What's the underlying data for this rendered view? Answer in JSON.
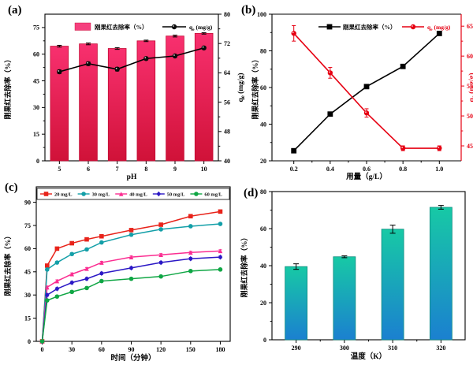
{
  "figure": {
    "background": "#ffffff"
  },
  "chart_data": [
    {
      "panel": "(a)",
      "type": "bar",
      "subtype": "bar-line-dual-axis",
      "categories": [
        5,
        6,
        7,
        8,
        9,
        10
      ],
      "xlabel": "pH",
      "ylabel_left": "刚果红去除率（%）",
      "ylabel_right": "qe (mg/g)",
      "ylim_left": [
        0,
        82.5
      ],
      "yticks_left": [
        0,
        15,
        30,
        45,
        60,
        75
      ],
      "yminor_left": [
        7.5,
        22.5,
        37.5,
        52.5,
        67.5
      ],
      "ylim_right": [
        40,
        80
      ],
      "yticks_right": [
        40,
        48,
        56,
        64,
        72,
        80
      ],
      "yminor_right": [
        44,
        52,
        60,
        68,
        76
      ],
      "bar_series": {
        "name": "刚果红去除率（%）",
        "values": [
          64.5,
          65.8,
          63.2,
          67.5,
          70.2,
          71.7
        ],
        "errors": [
          0.5,
          0.5,
          0.5,
          0.4,
          0.5,
          0.4
        ],
        "color_top": "#F8306F",
        "color_bottom": "#D01238",
        "edge_color": "#C40A33",
        "legend_swatch": "#F5407E"
      },
      "line_series": {
        "name": "qe (mg/g)",
        "values": [
          64.3,
          66.5,
          65.0,
          67.9,
          68.6,
          70.8
        ],
        "errors": [
          0.5,
          0.5,
          0.5,
          0.4,
          0.4,
          0.4
        ],
        "color": "#000000"
      }
    },
    {
      "panel": "(b)",
      "type": "line",
      "subtype": "dual-axis",
      "x": [
        0.2,
        0.4,
        0.6,
        0.8,
        1.0
      ],
      "xlim": [
        0.08,
        1.12
      ],
      "xticks": [
        0.2,
        0.4,
        0.6,
        0.8,
        1.0
      ],
      "xminor": [
        0.3,
        0.5,
        0.7,
        0.9
      ],
      "xlabel": "用量（g/L）",
      "ylabel_left": "刚果红去除率（%）",
      "ylim_left": [
        20,
        100
      ],
      "yticks_left": [
        20,
        40,
        60,
        80,
        100
      ],
      "yminor_left": [
        30,
        50,
        70,
        90
      ],
      "ylabel_right": "qe (mg/g)",
      "ylim_right": [
        42.5,
        67
      ],
      "yticks_right": [
        45,
        50,
        55,
        60,
        65
      ],
      "yminor_right": [
        47.5,
        52.5,
        57.5,
        62.5
      ],
      "right_axis_color": "#E60012",
      "series": [
        {
          "name": "刚果红去除率（%）",
          "axis": "left",
          "color": "#000000",
          "marker": "square",
          "values": [
            25.5,
            45.5,
            60.5,
            71.5,
            89.5
          ],
          "errors": [
            0,
            0,
            0,
            0,
            0
          ]
        },
        {
          "name": "qe (mg/g)",
          "axis": "right",
          "color": "#E60012",
          "marker": "circle",
          "values": [
            63.8,
            57.2,
            50.5,
            44.6,
            44.6
          ],
          "errors": [
            1.3,
            0.9,
            0.7,
            0.4,
            0.4
          ]
        }
      ]
    },
    {
      "panel": "(c)",
      "type": "line",
      "x": [
        0,
        5,
        15,
        30,
        45,
        60,
        90,
        120,
        150,
        180
      ],
      "xlim": [
        -6,
        190
      ],
      "xticks": [
        0,
        30,
        60,
        90,
        120,
        150,
        180
      ],
      "xlabel": "时间（分钟）",
      "ylabel": "刚果红去除率（%）",
      "ylim": [
        0,
        100
      ],
      "yticks": [
        0,
        15,
        30,
        45,
        60,
        75,
        90
      ],
      "point_error": 0.8,
      "series": [
        {
          "name": "20 mg/L",
          "color": "#E8231A",
          "marker": "square",
          "values": [
            0,
            49,
            60,
            63.5,
            66,
            68,
            72,
            75.5,
            81,
            84
          ]
        },
        {
          "name": "30 mg/L",
          "color": "#139FA8",
          "marker": "circle",
          "values": [
            0,
            46.5,
            51,
            56.5,
            59.5,
            64,
            69,
            72.5,
            74.5,
            76
          ]
        },
        {
          "name": "40 mg/L",
          "color": "#FB2D91",
          "marker": "triangle",
          "values": [
            0,
            35,
            39,
            43.5,
            47,
            51,
            54.5,
            56,
            57.5,
            58.5
          ]
        },
        {
          "name": "50 mg/L",
          "color": "#2A17C5",
          "marker": "diamond",
          "values": [
            0,
            30,
            34,
            38,
            40.5,
            44,
            47.5,
            51,
            53.5,
            54.5
          ]
        },
        {
          "name": "60 mg/L",
          "color": "#0FA644",
          "marker": "circle",
          "values": [
            0,
            26.5,
            29,
            32,
            34.5,
            39,
            40.5,
            42,
            45.5,
            46.5
          ]
        }
      ]
    },
    {
      "panel": "(d)",
      "type": "bar",
      "categories": [
        290,
        300,
        310,
        320
      ],
      "xlabel": "温度（K）",
      "ylabel": "刚果红去除率（%）",
      "ylim": [
        0,
        80
      ],
      "yticks": [
        0,
        20,
        40,
        60,
        80
      ],
      "yminor": [
        10,
        30,
        50,
        70
      ],
      "values": [
        39.5,
        44.8,
        59.7,
        71.5
      ],
      "errors": [
        1.5,
        0.5,
        2.2,
        1.0
      ],
      "bar_color_top": "#17C9A5",
      "bar_color_bottom": "#1B80D0",
      "edge_color": "#0E8C7E"
    }
  ]
}
